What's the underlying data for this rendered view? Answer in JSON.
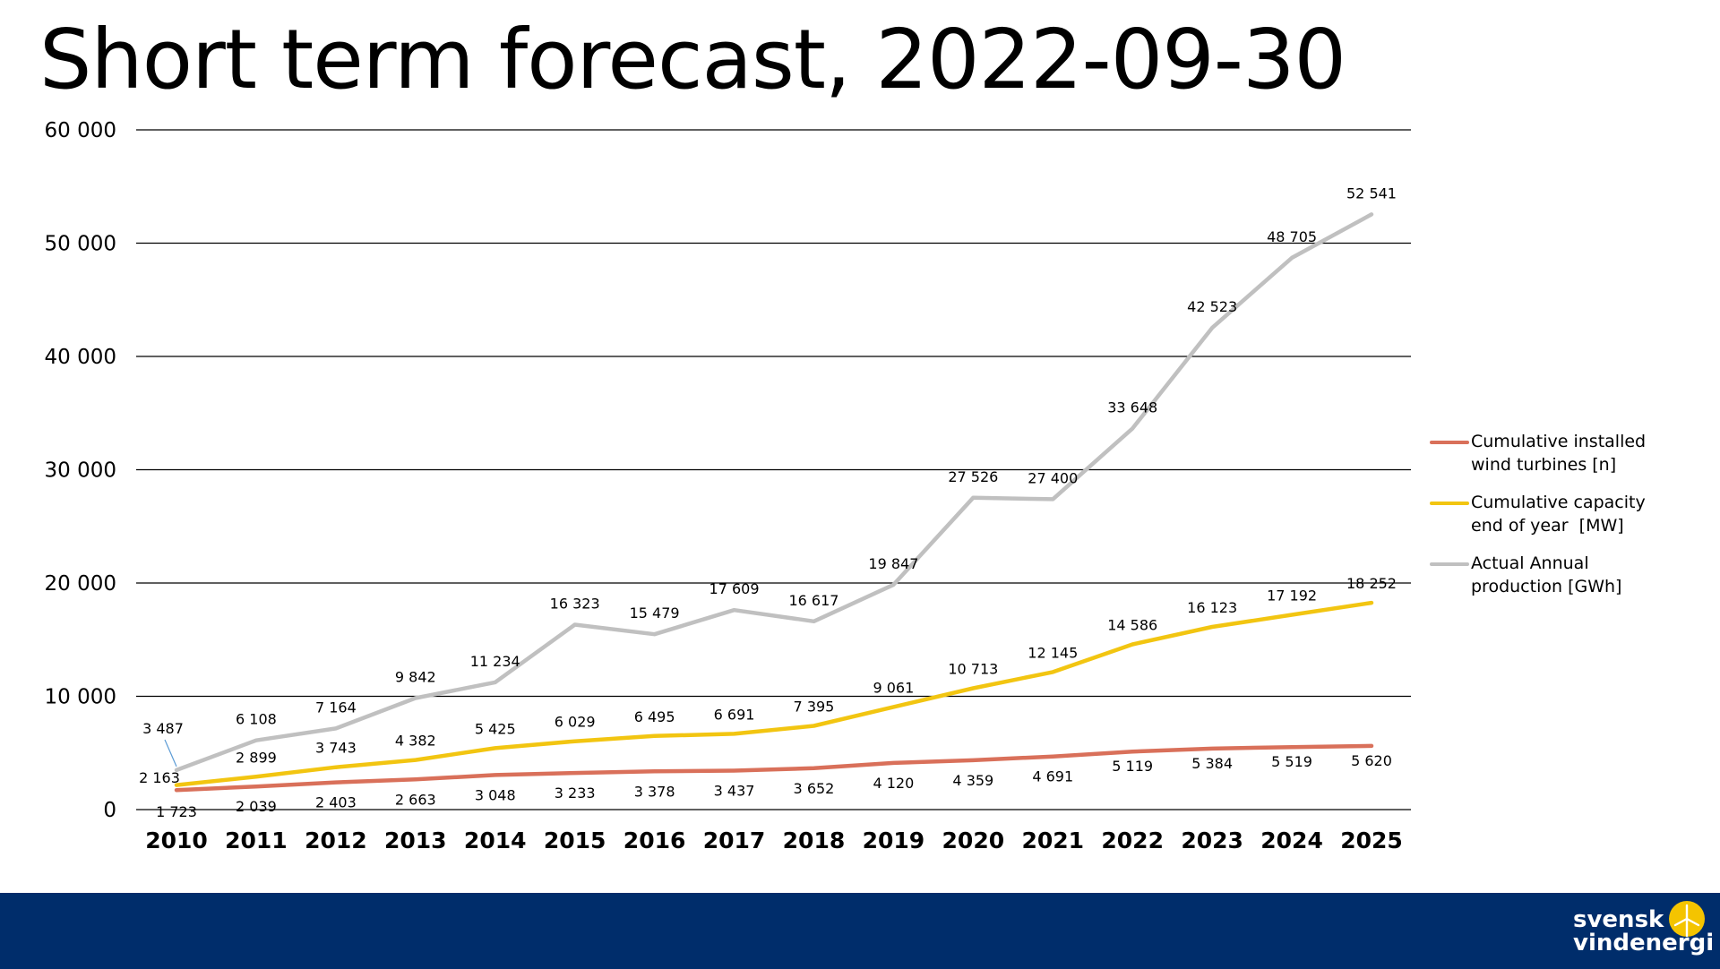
{
  "title": "Short term forecast, 2022-09-30",
  "chart_data": {
    "type": "line",
    "title": "Short term forecast, 2022-09-30",
    "categories": [
      "2010",
      "2011",
      "2012",
      "2013",
      "2014",
      "2015",
      "2016",
      "2017",
      "2018",
      "2019",
      "2020",
      "2021",
      "2022",
      "2023",
      "2024",
      "2025"
    ],
    "ylim": [
      0,
      60000
    ],
    "yticks": [
      0,
      10000,
      20000,
      30000,
      40000,
      50000,
      60000
    ],
    "ytick_labels": [
      "0",
      "10 000",
      "20 000",
      "30 000",
      "40 000",
      "50 000",
      "60 000"
    ],
    "grid": true,
    "legend_position": "right",
    "series": [
      {
        "name": "Cumulative installed wind turbines [n]",
        "color": "#d9705a",
        "values": [
          1723,
          2039,
          2403,
          2663,
          3048,
          3233,
          3378,
          3437,
          3652,
          4120,
          4359,
          4691,
          5119,
          5384,
          5519,
          5620
        ],
        "labels": [
          "1 723",
          "2 039",
          "2 403",
          "2 663",
          "3 048",
          "3 233",
          "3 378",
          "3 437",
          "3 652",
          "4 120",
          "4 359",
          "4 691",
          "5 119",
          "5 384",
          "5 519",
          "5 620"
        ]
      },
      {
        "name": "Cumulative capacity end of year  [MW]",
        "color": "#f2c511",
        "values": [
          2163,
          2899,
          3743,
          4382,
          5425,
          6029,
          6495,
          6691,
          7395,
          9061,
          10713,
          12145,
          14586,
          16123,
          17192,
          18252
        ],
        "labels": [
          "2 163",
          "2 899",
          "3 743",
          "4 382",
          "5 425",
          "6 029",
          "6 495",
          "6 691",
          "7 395",
          "9 061",
          "10 713",
          "12 145",
          "14 586",
          "16 123",
          "17 192",
          "18 252"
        ]
      },
      {
        "name": "Actual Annual production [GWh]",
        "color": "#c0c0c0",
        "values": [
          3487,
          6108,
          7164,
          9842,
          11234,
          16323,
          15479,
          17609,
          16617,
          19847,
          27526,
          27400,
          33648,
          42523,
          48705,
          52541
        ],
        "labels": [
          "3 487",
          "6 108",
          "7 164",
          "9 842",
          "11 234",
          "16 323",
          "15 479",
          "17 609",
          "16 617",
          "19 847",
          "27 526",
          "27 400",
          "33 648",
          "42 523",
          "48 705",
          "52 541"
        ]
      }
    ]
  },
  "legend": [
    {
      "line1": "Cumulative installed",
      "line2": "wind turbines [n]"
    },
    {
      "line1": "Cumulative capacity",
      "line2": "end of year  [MW]"
    },
    {
      "line1": "Actual Annual",
      "line2": "production [GWh]"
    }
  ],
  "footer": {
    "background": "#002d6b",
    "logo_word1": "svensk",
    "logo_word2": "vindenergi",
    "logo_icon": "wind-turbine-icon"
  }
}
